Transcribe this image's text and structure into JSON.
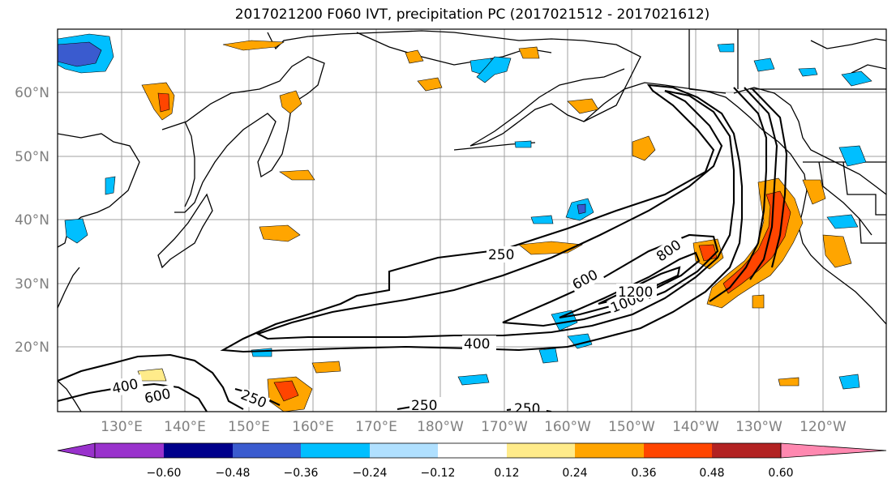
{
  "title": "2017021200 F060 IVT, precipitation PC (2017021512 - 2017021612)",
  "lat_labels": [
    "60°N",
    "50°N",
    "40°N",
    "30°N",
    "20°N"
  ],
  "lon_labels": [
    "130°E",
    "140°E",
    "150°E",
    "160°E",
    "170°E",
    "180°W",
    "170°W",
    "160°W",
    "150°W",
    "140°W",
    "130°W",
    "120°W"
  ],
  "ivt_contour_labels": [
    "250",
    "250",
    "250",
    "250",
    "400",
    "400",
    "600",
    "600",
    "800",
    "1000",
    "1200"
  ],
  "colorbar": {
    "ticks": [
      "−0.60",
      "−0.48",
      "−0.36",
      "−0.24",
      "−0.12",
      "0.12",
      "0.24",
      "0.36",
      "0.48",
      "0.60"
    ],
    "colors": [
      "#9932cc",
      "#00008b",
      "#3a5bcf",
      "#00bfff",
      "#b0e0ff",
      "#ffffff",
      "#ffeb8a",
      "#ffa500",
      "#ff4500",
      "#b22222",
      "#ff88b0"
    ]
  },
  "colors": {
    "land_outline": "#000000",
    "grid": "#a0a0a0",
    "contour": "#000000"
  }
}
